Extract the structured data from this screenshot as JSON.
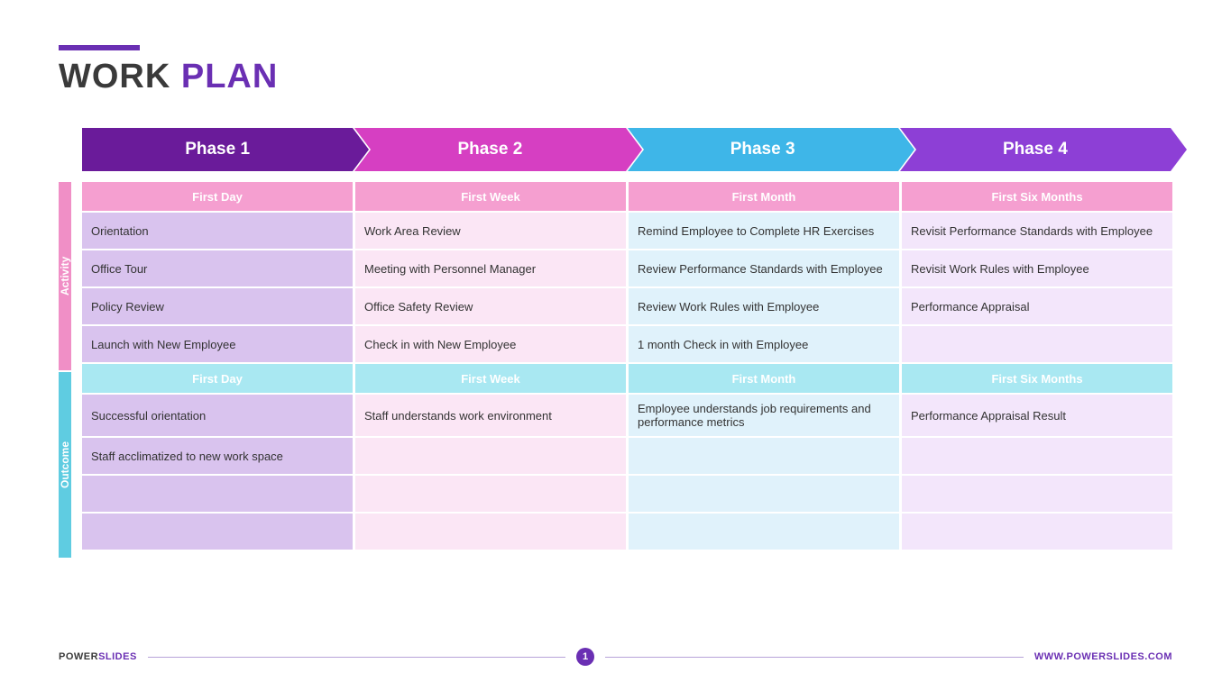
{
  "title": {
    "word1": "WORK",
    "word2": "PLAN"
  },
  "accent_color": "#6a2fb3",
  "phases": [
    {
      "label": "Phase 1",
      "bg": "#6a1b9a",
      "arrow": "#6a1b9a"
    },
    {
      "label": "Phase 2",
      "bg": "#d63fc2",
      "arrow": "#d63fc2"
    },
    {
      "label": "Phase 3",
      "bg": "#3eb6e8",
      "arrow": "#3eb6e8"
    },
    {
      "label": "Phase 4",
      "bg": "#8d3fd6",
      "arrow": "#8d3fd6"
    }
  ],
  "sections": [
    {
      "side_label": "Activity",
      "side_bg": "#f08fc6",
      "header_bg": "#f59fd0",
      "headers": [
        "First Day",
        "First Week",
        "First Month",
        "First Six Months"
      ],
      "col_bg": [
        "#d9c3ee",
        "#fbe6f5",
        "#e0f2fb",
        "#f3e6fb"
      ],
      "rows": [
        [
          "Orientation",
          "Work Area Review",
          "Remind Employee to Complete HR Exercises",
          "Revisit Performance Standards with Employee"
        ],
        [
          "Office Tour",
          "Meeting with Personnel Manager",
          "Review Performance Standards with Employee",
          "Revisit Work Rules with Employee"
        ],
        [
          "Policy Review",
          "Office Safety Review",
          "Review Work Rules with Employee",
          "Performance Appraisal"
        ],
        [
          "Launch with New Employee",
          "Check in with New Employee",
          "1 month Check in with Employee",
          ""
        ]
      ]
    },
    {
      "side_label": "Outcome",
      "side_bg": "#5fcce1",
      "header_bg": "#a9e8f2",
      "headers": [
        "First Day",
        "First Week",
        "First Month",
        "First Six Months"
      ],
      "col_bg": [
        "#d9c3ee",
        "#fbe6f5",
        "#e0f2fb",
        "#f3e6fb"
      ],
      "rows": [
        [
          "Successful orientation",
          "Staff understands work environment",
          "Employee understands job requirements and performance metrics",
          "Performance Appraisal Result"
        ],
        [
          "Staff acclimatized to new work space",
          "",
          "",
          ""
        ],
        [
          "",
          "",
          "",
          ""
        ],
        [
          "",
          "",
          "",
          ""
        ]
      ]
    }
  ],
  "footer": {
    "brand1": "POWER",
    "brand2": "SLIDES",
    "page": "1",
    "url": "WWW.POWERSLIDES.COM"
  }
}
